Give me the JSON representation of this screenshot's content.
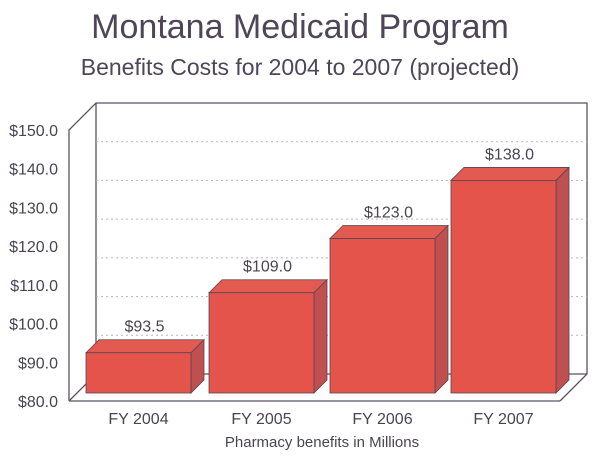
{
  "chart_data": {
    "type": "bar",
    "title": "Montana Medicaid Program",
    "subtitle": "Benefits Costs for 2004 to 2007 (projected)",
    "xlabel": "Pharmacy benefits  in Millions",
    "ylabel": "",
    "categories": [
      "FY 2004",
      "FY 2005",
      "FY 2006",
      "FY 2007"
    ],
    "values": [
      93.5,
      109.0,
      123.0,
      138.0
    ],
    "data_labels": [
      "$93.5",
      "$109.0",
      "$123.0",
      "$138.0"
    ],
    "ylim": [
      80,
      150
    ],
    "yticks": [
      80,
      90,
      100,
      110,
      120,
      130,
      140,
      150
    ],
    "ytick_labels": [
      "$80.0",
      "$90.0",
      "$100.0",
      "$110.0",
      "$120.0",
      "$130.0",
      "$140.0",
      "$150.0"
    ],
    "grid": true,
    "style": "3d-bar",
    "colors": {
      "bar_front": "#e5544a",
      "bar_top": "#e25a50",
      "bar_side": "#c0504f",
      "frame": "#5a5262",
      "grid": "#b8b4bc"
    }
  }
}
